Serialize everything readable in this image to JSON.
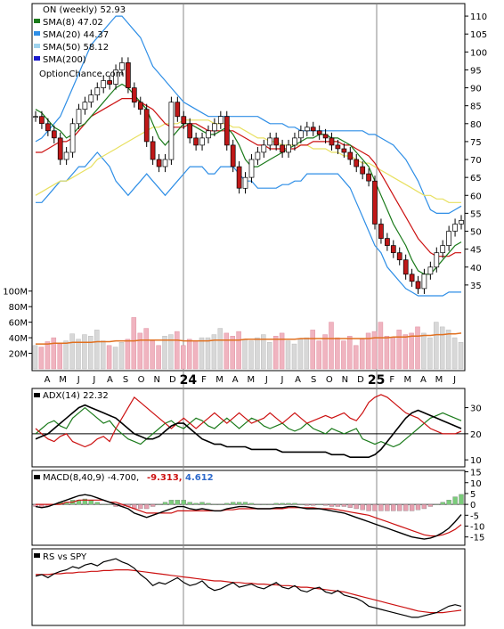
{
  "chart_data": [
    {
      "panel": "price",
      "type": "candlestick",
      "title": "ON (weekly) 52.93",
      "watermark": "OptionChance.com",
      "legend": [
        {
          "label": "SMA(8) 47.02",
          "color": "#1a7a1a"
        },
        {
          "label": "SMA(20) 44.37",
          "color": "#2e8ee6"
        },
        {
          "label": "SMA(50) 58.12",
          "color": "#9fd3ee"
        },
        {
          "label": "SMA(200)",
          "color": "#1a1acc"
        }
      ],
      "y_ticks": [
        110,
        105,
        100,
        95,
        90,
        85,
        80,
        75,
        70,
        65,
        60,
        55,
        50,
        45,
        40,
        35
      ],
      "ylim": [
        30,
        113
      ],
      "months": [
        "A",
        "M",
        "J",
        "J",
        "A",
        "S",
        "O",
        "N",
        "D",
        "24",
        "F",
        "M",
        "A",
        "M",
        "J",
        "J",
        "A",
        "S",
        "O",
        "N",
        "D",
        "25",
        "F",
        "M",
        "A",
        "M",
        "J"
      ],
      "year_labels": [
        "24",
        "25"
      ],
      "close": [
        82,
        80,
        78,
        76,
        70,
        72,
        80,
        84,
        86,
        88,
        90,
        92,
        91,
        95,
        97,
        90,
        86,
        84,
        75,
        70,
        68,
        70,
        86,
        82,
        80,
        76,
        74,
        76,
        78,
        80,
        82,
        74,
        68,
        62,
        65,
        70,
        72,
        74,
        76,
        74,
        72,
        74,
        76,
        78,
        79,
        78,
        77,
        76,
        74,
        73,
        72,
        70,
        68,
        66,
        64,
        52,
        48,
        46,
        44,
        42,
        38,
        36,
        34,
        38,
        40,
        44,
        46,
        50,
        52,
        53
      ],
      "sma8": [
        84,
        83,
        81,
        79,
        78,
        76,
        77,
        79,
        80,
        82,
        84,
        86,
        88,
        90,
        91,
        90,
        88,
        86,
        84,
        80,
        76,
        74,
        76,
        78,
        80,
        80,
        79,
        78,
        77,
        77,
        78,
        79,
        77,
        74,
        70,
        68,
        68,
        69,
        70,
        71,
        72,
        73,
        74,
        75,
        76,
        76,
        77,
        77,
        76,
        76,
        75,
        74,
        72,
        70,
        68,
        64,
        60,
        56,
        52,
        49,
        46,
        42,
        39,
        38,
        38,
        40,
        42,
        44,
        46,
        47
      ],
      "sma20": [
        72,
        72,
        73,
        74,
        75,
        75,
        76,
        78,
        80,
        82,
        83,
        84,
        85,
        86,
        87,
        87,
        87,
        86,
        85,
        84,
        82,
        80,
        79,
        79,
        79,
        80,
        80,
        79,
        78,
        78,
        78,
        78,
        78,
        77,
        76,
        75,
        74,
        74,
        73,
        73,
        73,
        73,
        73,
        74,
        74,
        75,
        75,
        75,
        75,
        75,
        74,
        74,
        73,
        72,
        71,
        69,
        66,
        63,
        60,
        57,
        54,
        51,
        48,
        46,
        44,
        43,
        43,
        43,
        44,
        44
      ],
      "sma50": [
        60,
        61,
        62,
        63,
        64,
        64,
        65,
        66,
        67,
        68,
        70,
        71,
        72,
        73,
        74,
        75,
        76,
        77,
        78,
        79,
        79,
        80,
        80,
        80,
        81,
        81,
        81,
        81,
        81,
        80,
        80,
        80,
        79,
        79,
        78,
        77,
        76,
        76,
        75,
        75,
        74,
        74,
        74,
        74,
        74,
        73,
        73,
        73,
        72,
        72,
        71,
        71,
        70,
        69,
        69,
        68,
        67,
        66,
        65,
        64,
        63,
        62,
        61,
        60,
        60,
        59,
        59,
        58,
        58,
        58
      ],
      "upper_band": [
        75,
        76,
        78,
        80,
        82,
        86,
        90,
        94,
        98,
        102,
        104,
        106,
        108,
        110,
        110,
        108,
        106,
        104,
        100,
        96,
        94,
        92,
        90,
        88,
        86,
        85,
        84,
        83,
        82,
        82,
        82,
        82,
        82,
        82,
        82,
        82,
        82,
        81,
        80,
        80,
        80,
        79,
        79,
        78,
        78,
        78,
        78,
        78,
        78,
        78,
        78,
        78,
        78,
        78,
        77,
        77,
        76,
        75,
        74,
        72,
        70,
        67,
        64,
        60,
        56,
        55,
        55,
        55,
        56,
        57
      ],
      "lower_band": [
        58,
        58,
        60,
        62,
        64,
        64,
        66,
        68,
        68,
        70,
        72,
        70,
        68,
        64,
        62,
        60,
        62,
        64,
        66,
        64,
        62,
        60,
        62,
        64,
        66,
        68,
        68,
        68,
        66,
        66,
        68,
        68,
        68,
        66,
        64,
        64,
        62,
        62,
        62,
        62,
        63,
        63,
        64,
        64,
        66,
        66,
        66,
        66,
        66,
        66,
        64,
        62,
        58,
        54,
        50,
        46,
        44,
        40,
        38,
        36,
        34,
        33,
        32,
        32,
        32,
        32,
        32,
        33,
        33,
        33
      ]
    },
    {
      "panel": "volume",
      "type": "bar",
      "y_ticks": [
        "100M",
        "80M",
        "60M",
        "40M",
        "20M"
      ],
      "ylim": [
        0,
        110
      ],
      "values": [
        30,
        28,
        35,
        40,
        32,
        36,
        45,
        38,
        44,
        42,
        50,
        36,
        30,
        28,
        34,
        38,
        66,
        46,
        52,
        36,
        30,
        42,
        44,
        48,
        30,
        38,
        36,
        40,
        40,
        44,
        52,
        46,
        42,
        48,
        38,
        36,
        40,
        44,
        34,
        42,
        46,
        36,
        32,
        38,
        40,
        50,
        36,
        44,
        60,
        40,
        36,
        42,
        30,
        38,
        46,
        48,
        60,
        42,
        40,
        50,
        44,
        46,
        54,
        46,
        40,
        60,
        54,
        50,
        40,
        34
      ],
      "avg": [
        32,
        32,
        32,
        33,
        33,
        33,
        34,
        34,
        34,
        34,
        35,
        35,
        35,
        36,
        36,
        36,
        36,
        37,
        37,
        37,
        37,
        37,
        37,
        37,
        36,
        36,
        36,
        36,
        36,
        37,
        37,
        37,
        37,
        37,
        38,
        38,
        38,
        38,
        38,
        38,
        38,
        38,
        38,
        39,
        39,
        39,
        39,
        39,
        39,
        39,
        39,
        39,
        39,
        39,
        39,
        40,
        40,
        40,
        41,
        41,
        41,
        42,
        42,
        43,
        43,
        44,
        44,
        45,
        45,
        46
      ]
    },
    {
      "panel": "adx",
      "type": "line",
      "title": "ADX(14) 22.32",
      "y_ticks": [
        30,
        20,
        10
      ],
      "ylim": [
        8,
        36
      ],
      "adx": [
        18,
        19,
        20,
        22,
        24,
        26,
        28,
        30,
        31,
        30,
        29,
        28,
        27,
        26,
        24,
        22,
        20,
        19,
        18,
        18,
        19,
        21,
        23,
        24,
        24,
        22,
        20,
        18,
        17,
        16,
        16,
        15,
        15,
        15,
        15,
        14,
        14,
        14,
        14,
        14,
        13,
        13,
        13,
        13,
        13,
        13,
        13,
        13,
        12,
        12,
        12,
        11,
        11,
        11,
        11,
        12,
        14,
        17,
        20,
        23,
        26,
        28,
        29,
        28,
        27,
        26,
        25,
        24,
        23,
        22
      ],
      "di_plus": [
        20,
        22,
        24,
        25,
        23,
        22,
        26,
        28,
        30,
        28,
        26,
        24,
        25,
        22,
        20,
        18,
        17,
        16,
        18,
        20,
        22,
        24,
        25,
        23,
        22,
        24,
        26,
        25,
        23,
        22,
        24,
        26,
        24,
        22,
        24,
        26,
        25,
        23,
        22,
        23,
        24,
        22,
        21,
        22,
        24,
        22,
        21,
        20,
        22,
        21,
        20,
        21,
        22,
        18,
        17,
        16,
        17,
        16,
        15,
        16,
        18,
        20,
        22,
        24,
        26,
        27,
        28,
        27,
        26,
        25
      ],
      "di_minus": [
        22,
        20,
        18,
        17,
        19,
        20,
        17,
        16,
        15,
        16,
        18,
        19,
        17,
        22,
        26,
        30,
        34,
        32,
        30,
        28,
        26,
        24,
        22,
        24,
        26,
        24,
        22,
        24,
        26,
        28,
        26,
        24,
        26,
        28,
        26,
        24,
        25,
        26,
        28,
        26,
        24,
        26,
        28,
        26,
        24,
        25,
        26,
        27,
        26,
        27,
        28,
        26,
        25,
        28,
        32,
        34,
        35,
        34,
        32,
        30,
        28,
        27,
        26,
        24,
        22,
        21,
        20,
        20,
        20,
        21
      ],
      "colors": {
        "adx": "#000000",
        "di_plus": "#1a7a1a",
        "di_minus": "#cc1111"
      }
    },
    {
      "panel": "macd",
      "type": "line+bar",
      "title": "MACD(8,40,9) -4.700,",
      "value_signal": "-9.313,",
      "value_hist": "4.612",
      "y_ticks": [
        15,
        10,
        5,
        0,
        -5,
        -10,
        -15
      ],
      "ylim": [
        -18,
        14
      ],
      "macd": [
        -1,
        -1.5,
        -1,
        0,
        1,
        2,
        3,
        4,
        4.5,
        4,
        3,
        2,
        1,
        0,
        -1,
        -2,
        -4,
        -5,
        -6,
        -5,
        -4,
        -3,
        -2,
        -1,
        -1,
        -2,
        -2.5,
        -2,
        -2.5,
        -3,
        -3,
        -2,
        -1.5,
        -1,
        -1,
        -1.5,
        -2,
        -2,
        -2,
        -1.5,
        -1.5,
        -1,
        -1,
        -1.5,
        -2,
        -2,
        -2,
        -2.5,
        -3,
        -3.5,
        -4,
        -5,
        -6,
        -7,
        -8,
        -9,
        -10,
        -11,
        -12,
        -13,
        -14,
        -15,
        -15.5,
        -16,
        -15.5,
        -14.5,
        -13,
        -11,
        -8,
        -4.7
      ],
      "signal": [
        0,
        0,
        0,
        0,
        0,
        1,
        1,
        2,
        2,
        2,
        2,
        2,
        1,
        1,
        0,
        -1,
        -2,
        -3,
        -4,
        -4,
        -4,
        -4,
        -4,
        -3,
        -3,
        -3,
        -3,
        -3,
        -3,
        -3,
        -3,
        -2.5,
        -2.5,
        -2,
        -2,
        -2,
        -2,
        -2,
        -2,
        -2,
        -2,
        -1.5,
        -1.5,
        -1.5,
        -1.5,
        -1.5,
        -2,
        -2,
        -2,
        -2.5,
        -3,
        -3.5,
        -4,
        -4.5,
        -5,
        -6,
        -7,
        -8,
        -9,
        -10,
        -11,
        -12,
        -13,
        -14,
        -14.5,
        -14.5,
        -14,
        -13,
        -11.5,
        -9.3
      ],
      "colors": {
        "macd": "#000000",
        "signal": "#cc1111",
        "hist_pos": "#7acc7a",
        "hist_neg": "#e8a0b0"
      }
    },
    {
      "panel": "rs",
      "type": "line",
      "title": "RS vs SPY",
      "rs": [
        60,
        62,
        58,
        63,
        66,
        68,
        72,
        70,
        74,
        76,
        73,
        78,
        80,
        82,
        78,
        75,
        70,
        62,
        56,
        48,
        52,
        50,
        54,
        58,
        52,
        48,
        50,
        54,
        46,
        42,
        44,
        48,
        52,
        46,
        48,
        50,
        46,
        44,
        48,
        52,
        46,
        44,
        48,
        42,
        40,
        44,
        46,
        40,
        38,
        42,
        36,
        34,
        32,
        28,
        22,
        20,
        18,
        16,
        14,
        12,
        10,
        8,
        8,
        10,
        12,
        14,
        18,
        22,
        24,
        22
      ],
      "rs_ma": [
        62,
        62,
        62,
        63,
        63,
        64,
        64,
        65,
        65,
        66,
        66,
        67,
        67,
        68,
        68,
        68,
        67,
        66,
        65,
        64,
        63,
        62,
        61,
        60,
        59,
        58,
        57,
        56,
        55,
        54,
        54,
        53,
        52,
        52,
        51,
        51,
        50,
        50,
        49,
        49,
        48,
        48,
        47,
        46,
        46,
        45,
        44,
        43,
        42,
        41,
        40,
        38,
        36,
        34,
        32,
        30,
        28,
        26,
        24,
        22,
        20,
        18,
        16,
        15,
        14,
        14,
        14,
        15,
        16,
        17
      ],
      "colors": {
        "rs": "#000000",
        "rs_ma": "#cc1111"
      }
    }
  ]
}
